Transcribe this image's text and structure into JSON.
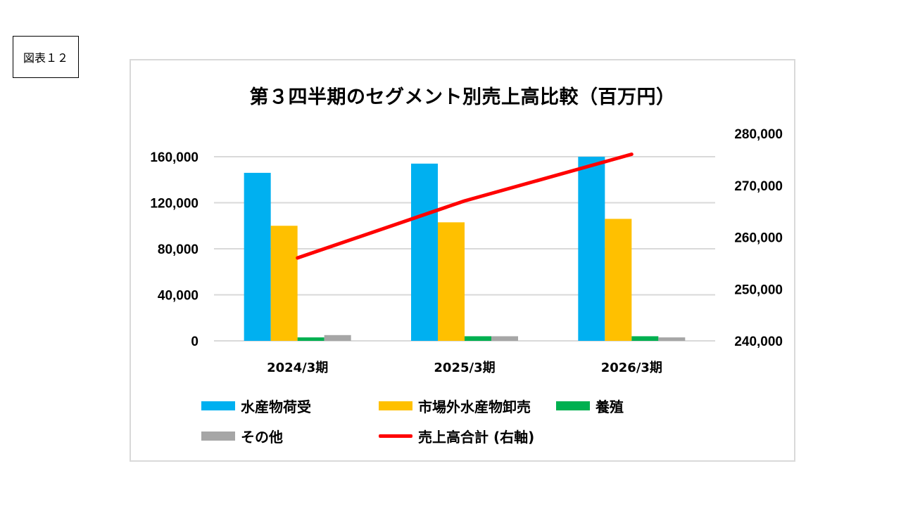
{
  "figure_label": "図表１２",
  "chart_data": {
    "type": "bar",
    "title": "第３四半期のセグメント別売上高比較（百万円）",
    "categories": [
      "2024/3期",
      "2025/3期",
      "2026/3期"
    ],
    "series": [
      {
        "name": "水産物荷受",
        "values": [
          146000,
          154000,
          160000
        ],
        "color": "#00B0F0",
        "axis": "left"
      },
      {
        "name": "市場外水産物卸売",
        "values": [
          100000,
          103000,
          106000
        ],
        "color": "#FFC000",
        "axis": "left"
      },
      {
        "name": "養殖",
        "values": [
          3000,
          4000,
          4000
        ],
        "color": "#00B050",
        "axis": "left"
      },
      {
        "name": "その他",
        "values": [
          5000,
          4000,
          3000
        ],
        "color": "#A6A6A6",
        "axis": "left"
      }
    ],
    "line_series": {
      "name": "売上高合計 (右軸)",
      "type": "line",
      "values": [
        256000,
        267000,
        276000
      ],
      "color": "#FF0000",
      "axis": "right"
    },
    "y_left": {
      "ylim": [
        0,
        160000
      ],
      "ticks": [
        "0",
        "40,000",
        "80,000",
        "120,000",
        "160,000"
      ]
    },
    "y_right": {
      "ylim": [
        240000,
        280000
      ],
      "ticks": [
        "240,000",
        "250,000",
        "260,000",
        "270,000",
        "280,000"
      ]
    },
    "grid": true,
    "legend": "bottom"
  }
}
